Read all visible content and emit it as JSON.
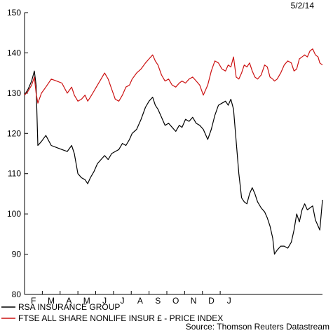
{
  "chart_data": {
    "type": "line",
    "date_label": "5/2/14",
    "source_label": "Source: Thomson Reuters Datastream",
    "y_ticks": [
      80,
      90,
      100,
      110,
      120,
      130,
      140,
      150
    ],
    "ylim": [
      80,
      150
    ],
    "x_tick_labels": [
      "F",
      "M",
      "A",
      "M",
      "J",
      "J",
      "A",
      "S",
      "O",
      "N",
      "D",
      "J"
    ],
    "series": [
      {
        "name": "RSA INSURANCE GROUP",
        "color": "#000000",
        "values": [
          [
            1.0,
            129.5
          ],
          [
            1.2,
            131
          ],
          [
            1.4,
            133
          ],
          [
            1.55,
            135.5
          ],
          [
            1.65,
            132
          ],
          [
            1.75,
            117
          ],
          [
            1.95,
            118
          ],
          [
            2.2,
            119.5
          ],
          [
            2.5,
            117
          ],
          [
            2.8,
            116.5
          ],
          [
            3.1,
            116
          ],
          [
            3.4,
            115.5
          ],
          [
            3.65,
            117
          ],
          [
            3.8,
            115
          ],
          [
            4.0,
            110
          ],
          [
            4.2,
            109
          ],
          [
            4.4,
            108.5
          ],
          [
            4.55,
            107.5
          ],
          [
            4.7,
            109
          ],
          [
            4.9,
            110.5
          ],
          [
            5.1,
            112.5
          ],
          [
            5.3,
            113.5
          ],
          [
            5.5,
            114.5
          ],
          [
            5.7,
            113.5
          ],
          [
            5.9,
            115
          ],
          [
            6.1,
            115.5
          ],
          [
            6.3,
            116
          ],
          [
            6.5,
            117.5
          ],
          [
            6.7,
            117
          ],
          [
            6.9,
            118.5
          ],
          [
            7.05,
            120
          ],
          [
            7.3,
            121
          ],
          [
            7.55,
            123.5
          ],
          [
            7.8,
            126.5
          ],
          [
            8.0,
            128
          ],
          [
            8.2,
            129
          ],
          [
            8.35,
            127
          ],
          [
            8.5,
            126
          ],
          [
            8.7,
            124
          ],
          [
            8.9,
            122
          ],
          [
            9.1,
            122.5
          ],
          [
            9.3,
            121.5
          ],
          [
            9.5,
            120.5
          ],
          [
            9.7,
            122
          ],
          [
            9.85,
            121.5
          ],
          [
            10.05,
            123.5
          ],
          [
            10.25,
            123
          ],
          [
            10.45,
            124
          ],
          [
            10.65,
            122.5
          ],
          [
            10.85,
            122
          ],
          [
            11.05,
            121
          ],
          [
            11.3,
            118.5
          ],
          [
            11.5,
            121
          ],
          [
            11.7,
            124.5
          ],
          [
            11.9,
            127
          ],
          [
            12.1,
            127.5
          ],
          [
            12.3,
            128
          ],
          [
            12.45,
            127
          ],
          [
            12.6,
            128.5
          ],
          [
            12.75,
            126
          ],
          [
            12.9,
            118
          ],
          [
            13.05,
            110
          ],
          [
            13.2,
            104
          ],
          [
            13.35,
            103
          ],
          [
            13.5,
            102.5
          ],
          [
            13.65,
            105
          ],
          [
            13.8,
            106.5
          ],
          [
            13.95,
            105
          ],
          [
            14.1,
            103
          ],
          [
            14.3,
            101.5
          ],
          [
            14.5,
            100.5
          ],
          [
            14.65,
            99
          ],
          [
            14.8,
            97
          ],
          [
            14.95,
            94
          ],
          [
            15.05,
            90
          ],
          [
            15.2,
            91
          ],
          [
            15.4,
            92
          ],
          [
            15.6,
            92
          ],
          [
            15.8,
            91.5
          ],
          [
            16.0,
            93
          ],
          [
            16.15,
            96
          ],
          [
            16.3,
            100
          ],
          [
            16.45,
            98
          ],
          [
            16.6,
            101
          ],
          [
            16.75,
            102.5
          ],
          [
            16.9,
            101
          ],
          [
            17.05,
            101.5
          ],
          [
            17.2,
            102
          ],
          [
            17.35,
            98.5
          ],
          [
            17.5,
            97
          ],
          [
            17.6,
            96
          ],
          [
            17.75,
            103.5
          ]
        ]
      },
      {
        "name": "FTSE ALL SHARE NONLIFE INSUR £ - PRICE INDEX",
        "color": "#cc1111",
        "values": [
          [
            1.0,
            129.5
          ],
          [
            1.2,
            130.5
          ],
          [
            1.4,
            132
          ],
          [
            1.55,
            134
          ],
          [
            1.65,
            130
          ],
          [
            1.75,
            127.5
          ],
          [
            1.95,
            130
          ],
          [
            2.2,
            131.5
          ],
          [
            2.5,
            133.5
          ],
          [
            2.8,
            133
          ],
          [
            3.1,
            132.5
          ],
          [
            3.4,
            130
          ],
          [
            3.65,
            131.5
          ],
          [
            3.8,
            129.5
          ],
          [
            4.0,
            128
          ],
          [
            4.2,
            128.5
          ],
          [
            4.4,
            129.5
          ],
          [
            4.55,
            128
          ],
          [
            4.7,
            129
          ],
          [
            4.9,
            130.5
          ],
          [
            5.1,
            132
          ],
          [
            5.3,
            133.5
          ],
          [
            5.5,
            135
          ],
          [
            5.7,
            133.5
          ],
          [
            5.9,
            131
          ],
          [
            6.1,
            128.5
          ],
          [
            6.3,
            128
          ],
          [
            6.5,
            129.5
          ],
          [
            6.7,
            131.5
          ],
          [
            6.9,
            132
          ],
          [
            7.05,
            133.5
          ],
          [
            7.3,
            135
          ],
          [
            7.55,
            136
          ],
          [
            7.8,
            137.5
          ],
          [
            8.0,
            138.5
          ],
          [
            8.2,
            139.5
          ],
          [
            8.35,
            138
          ],
          [
            8.5,
            137
          ],
          [
            8.7,
            134.5
          ],
          [
            8.9,
            133
          ],
          [
            9.1,
            133.5
          ],
          [
            9.3,
            132
          ],
          [
            9.5,
            131.5
          ],
          [
            9.7,
            132.5
          ],
          [
            9.85,
            133
          ],
          [
            10.05,
            132.5
          ],
          [
            10.25,
            133.5
          ],
          [
            10.45,
            134
          ],
          [
            10.65,
            133
          ],
          [
            10.85,
            132
          ],
          [
            11.05,
            129.5
          ],
          [
            11.3,
            132
          ],
          [
            11.5,
            135.5
          ],
          [
            11.7,
            138
          ],
          [
            11.9,
            137.5
          ],
          [
            12.1,
            136
          ],
          [
            12.3,
            135.5
          ],
          [
            12.45,
            137
          ],
          [
            12.6,
            136.5
          ],
          [
            12.75,
            139
          ],
          [
            12.9,
            134
          ],
          [
            13.05,
            133.5
          ],
          [
            13.2,
            135
          ],
          [
            13.35,
            137
          ],
          [
            13.5,
            136.5
          ],
          [
            13.65,
            137.5
          ],
          [
            13.8,
            135.5
          ],
          [
            13.95,
            134
          ],
          [
            14.1,
            133.5
          ],
          [
            14.3,
            134.5
          ],
          [
            14.5,
            137
          ],
          [
            14.65,
            136.5
          ],
          [
            14.8,
            134
          ],
          [
            14.95,
            133.5
          ],
          [
            15.05,
            133
          ],
          [
            15.2,
            133.5
          ],
          [
            15.4,
            135
          ],
          [
            15.6,
            137
          ],
          [
            15.8,
            138
          ],
          [
            16.0,
            137.5
          ],
          [
            16.15,
            135.5
          ],
          [
            16.3,
            136
          ],
          [
            16.45,
            138.5
          ],
          [
            16.6,
            139
          ],
          [
            16.75,
            139.5
          ],
          [
            16.9,
            139
          ],
          [
            17.05,
            140.5
          ],
          [
            17.2,
            141
          ],
          [
            17.35,
            139.5
          ],
          [
            17.5,
            139
          ],
          [
            17.6,
            137.5
          ],
          [
            17.75,
            137
          ]
        ]
      }
    ]
  }
}
